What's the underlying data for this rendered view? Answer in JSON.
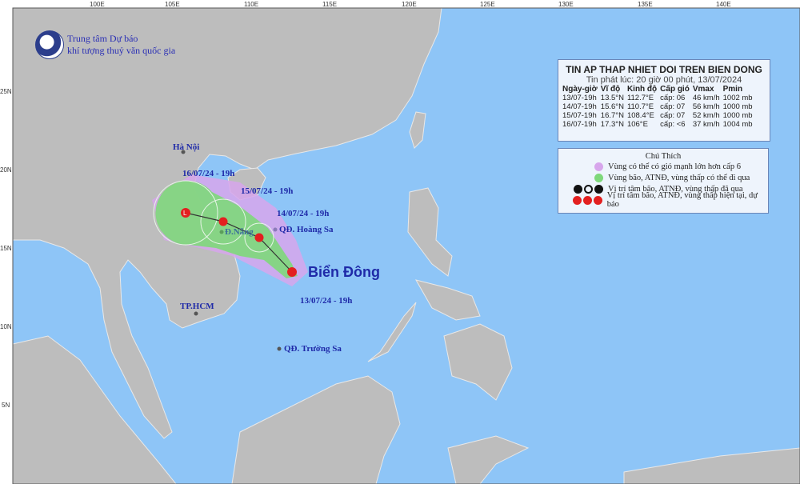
{
  "org": {
    "line1": "Trung tâm Dự báo",
    "line2": "khí tượng thuỷ văn quốc gia"
  },
  "axes": {
    "lon": [
      "100E",
      "105E",
      "110E",
      "115E",
      "120E",
      "125E",
      "130E",
      "135E",
      "140E"
    ],
    "lat": [
      "25N",
      "20N",
      "15N",
      "10N",
      "5N"
    ]
  },
  "info": {
    "title": "TIN AP THAP NHIET DOI TREN BIEN DONG",
    "issued": "Tin phát lúc: 20 giờ 00 phút, 13/07/2024",
    "headers": [
      "Ngày-giờ",
      "Vĩ độ",
      "Kinh độ",
      "Cấp gió",
      "Vmax",
      "Pmin"
    ],
    "rows": [
      [
        "13/07-19h",
        "13.5°N",
        "112.7°E",
        "cấp: 06",
        "46 km/h",
        "1002 mb"
      ],
      [
        "14/07-19h",
        "15.6°N",
        "110.7°E",
        "cấp: 07",
        "56 km/h",
        "1000 mb"
      ],
      [
        "15/07-19h",
        "16.7°N",
        "108.4°E",
        "cấp: 07",
        "52 km/h",
        "1000 mb"
      ],
      [
        "16/07-19h",
        "17.3°N",
        "106°E",
        "cấp: <6",
        "37 km/h",
        "1004 mb"
      ]
    ]
  },
  "legend": {
    "title": "Chú Thích",
    "items": [
      "Vùng có thể có gió mạnh lớn hơn cấp 6",
      "Vùng bão, ATNĐ, vùng thấp có thể đi qua",
      "Vị trí tâm bão, ATNĐ, vùng thấp đã qua",
      "Vị trí tâm bão, ATNĐ, vùng thấp hiện tại, dự báo"
    ]
  },
  "places": {
    "hanoi": "Hà Nội",
    "danang": "Đ.Nẵng",
    "hoangsa": "QĐ. Hoàng Sa",
    "truongsa": "QĐ. Trường Sa",
    "hcm": "TP.HCM",
    "sea": "Biển Đông"
  },
  "track_labels": [
    "13/07/24 - 19h",
    "14/07/24 - 19h",
    "15/07/24 - 19h",
    "16/07/24 - 19h"
  ],
  "colors": {
    "ocean": "#8ec5f7",
    "land": "#bdbdbd",
    "wind_zone": "#d7a6ec",
    "track_zone": "#7ed87a",
    "center": "#e32020"
  }
}
